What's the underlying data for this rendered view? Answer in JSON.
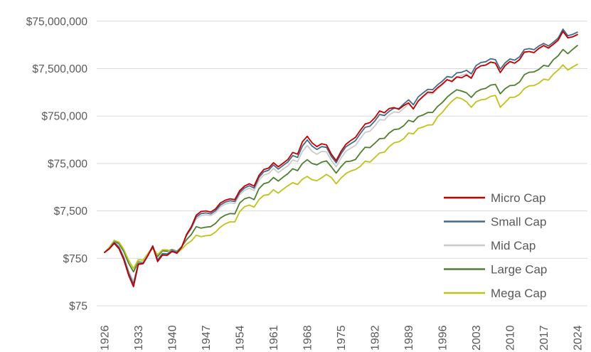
{
  "chart_data": {
    "type": "line",
    "title": "",
    "xlabel": "",
    "ylabel": "",
    "y_scale": "log",
    "ylim": [
      75,
      75000000
    ],
    "grid": "horizontal",
    "legend_position": "right-lower",
    "y_ticks": [
      {
        "value": 75000000,
        "label": "$75,000,000"
      },
      {
        "value": 7500000,
        "label": "$7,500,000"
      },
      {
        "value": 750000,
        "label": "$750,000"
      },
      {
        "value": 75000,
        "label": "$75,000"
      },
      {
        "value": 7500,
        "label": "$7,500"
      },
      {
        "value": 750,
        "label": "$750"
      },
      {
        "value": 75,
        "label": "$75"
      }
    ],
    "x_ticks": [
      1926,
      1933,
      1940,
      1947,
      1954,
      1961,
      1968,
      1975,
      1982,
      1989,
      1996,
      2003,
      2010,
      2017,
      2024
    ],
    "years": [
      1926,
      1927,
      1928,
      1929,
      1930,
      1931,
      1932,
      1933,
      1934,
      1935,
      1936,
      1937,
      1938,
      1939,
      1940,
      1941,
      1942,
      1943,
      1944,
      1945,
      1946,
      1947,
      1948,
      1949,
      1950,
      1951,
      1952,
      1953,
      1954,
      1955,
      1956,
      1957,
      1958,
      1959,
      1960,
      1961,
      1962,
      1963,
      1964,
      1965,
      1966,
      1967,
      1968,
      1969,
      1970,
      1971,
      1972,
      1973,
      1974,
      1975,
      1976,
      1977,
      1978,
      1979,
      1980,
      1981,
      1982,
      1983,
      1984,
      1985,
      1986,
      1987,
      1988,
      1989,
      1990,
      1991,
      1992,
      1993,
      1994,
      1995,
      1996,
      1997,
      1998,
      1999,
      2000,
      2001,
      2002,
      2003,
      2004,
      2005,
      2006,
      2007,
      2008,
      2009,
      2010,
      2011,
      2012,
      2013,
      2014,
      2015,
      2016,
      2017,
      2018,
      2019,
      2020,
      2021,
      2022,
      2023,
      2024
    ],
    "series": [
      {
        "name": "Micro Cap",
        "color": "#c00000",
        "values": [
          1000,
          1190,
          1560,
          1190,
          700,
          330,
          190,
          560,
          580,
          860,
          1350,
          640,
          880,
          870,
          1050,
          960,
          1300,
          2400,
          3500,
          6100,
          7300,
          7500,
          7100,
          8300,
          11000,
          12600,
          13500,
          13000,
          20000,
          25000,
          28000,
          25000,
          42000,
          56000,
          60000,
          78000,
          64000,
          76000,
          91000,
          128000,
          118000,
          215000,
          280000,
          205000,
          170000,
          195000,
          185000,
          118000,
          86000,
          135000,
          190000,
          228000,
          265000,
          375000,
          510000,
          545000,
          690000,
          960000,
          880000,
          1080000,
          1130000,
          1040000,
          1250000,
          1420000,
          1060000,
          1550000,
          1950000,
          2400000,
          2350000,
          2950000,
          3550000,
          4400000,
          4000000,
          5000000,
          4800000,
          5500000,
          4700000,
          7400000,
          8600000,
          8900000,
          10300000,
          9800000,
          6200000,
          8700000,
          10600000,
          9800000,
          11600000,
          16700000,
          17200000,
          16300000,
          20000000,
          23000000,
          20400000,
          24500000,
          30000000,
          46000000,
          33500000,
          35000000,
          39000000
        ]
      },
      {
        "name": "Small Cap",
        "color": "#44698c",
        "values": [
          1000,
          1210,
          1640,
          1280,
          770,
          370,
          215,
          580,
          600,
          880,
          1380,
          690,
          940,
          930,
          1100,
          1010,
          1330,
          2300,
          3300,
          5600,
          6600,
          6800,
          6500,
          7600,
          10000,
          11500,
          12300,
          11900,
          18200,
          22800,
          25500,
          22800,
          38000,
          50000,
          54000,
          70000,
          57000,
          68000,
          81000,
          110000,
          101000,
          175000,
          235000,
          175000,
          148000,
          170000,
          164000,
          106000,
          78000,
          120000,
          168000,
          196000,
          226000,
          320000,
          435000,
          460000,
          590000,
          810000,
          770000,
          950000,
          1100000,
          1080000,
          1350000,
          1650000,
          1300000,
          1900000,
          2300000,
          2750000,
          2700000,
          3400000,
          4100000,
          5100000,
          4900000,
          6100000,
          6300000,
          6900000,
          5800000,
          8700000,
          10100000,
          10500000,
          12100000,
          11600000,
          7300000,
          9900000,
          12000000,
          11300000,
          13300000,
          19000000,
          19800000,
          18800000,
          22500000,
          25500000,
          22500000,
          27000000,
          33000000,
          51000000,
          37000000,
          39500000,
          44000000
        ]
      },
      {
        "name": "Mid Cap",
        "color": "#cbcbcb",
        "values": [
          1000,
          1200,
          1670,
          1330,
          810,
          410,
          245,
          600,
          615,
          890,
          1360,
          710,
          960,
          950,
          1120,
          1030,
          1340,
          2250,
          3150,
          5100,
          6000,
          6200,
          5950,
          6900,
          9100,
          10400,
          11100,
          10800,
          16400,
          20400,
          22700,
          20200,
          33000,
          43000,
          46000,
          59000,
          48000,
          57000,
          67000,
          89000,
          82000,
          135000,
          180000,
          136000,
          117000,
          135000,
          132000,
          87000,
          64000,
          97000,
          136000,
          157000,
          180000,
          252000,
          340000,
          360000,
          465000,
          630000,
          615000,
          800000,
          920000,
          890000,
          1090000,
          1330000,
          1080000,
          1560000,
          1870000,
          2240000,
          2210000,
          2800000,
          3400000,
          4250000,
          4200000,
          5100000,
          5400000,
          5800000,
          4850000,
          7300000,
          8500000,
          8800000,
          10200000,
          9900000,
          6200000,
          8500000,
          10300000,
          9800000,
          11500000,
          16400000,
          17300000,
          16500000,
          19500000,
          22300000,
          19800000,
          23800000,
          28500000,
          45000000,
          33000000,
          35500000,
          40000000
        ]
      },
      {
        "name": "Large Cap",
        "color": "#4f7e32",
        "values": [
          1000,
          1280,
          1740,
          1520,
          1040,
          590,
          390,
          630,
          625,
          900,
          1250,
          820,
          1080,
          1060,
          1150,
          1060,
          1330,
          1850,
          2400,
          3500,
          3250,
          3400,
          3500,
          4100,
          5300,
          6100,
          6600,
          6500,
          11000,
          13500,
          14500,
          13000,
          22000,
          28000,
          30000,
          38000,
          32000,
          38500,
          46000,
          58000,
          53000,
          75000,
          90000,
          75000,
          70000,
          80000,
          85000,
          64000,
          47000,
          64000,
          82000,
          84000,
          91000,
          125000,
          165000,
          162000,
          200000,
          250000,
          255000,
          330000,
          390000,
          400000,
          470000,
          610000,
          565000,
          730000,
          790000,
          890000,
          895000,
          1190000,
          1450000,
          1880000,
          2280000,
          2680000,
          2530000,
          2320000,
          1850000,
          2420000,
          2730000,
          2880000,
          3350000,
          3500000,
          2210000,
          2830000,
          3290000,
          3340000,
          3910000,
          5600000,
          6300000,
          6400000,
          7200000,
          8800000,
          8400000,
          11500000,
          14000000,
          19000000,
          15500000,
          19000000,
          23000000
        ]
      },
      {
        "name": "Mega Cap",
        "color": "#c2c118",
        "values": [
          1000,
          1290,
          1800,
          1640,
          1150,
          680,
          460,
          700,
          690,
          960,
          1270,
          890,
          1140,
          1130,
          1050,
          970,
          1180,
          1500,
          1750,
          2300,
          2150,
          2250,
          2300,
          2700,
          3400,
          4000,
          4400,
          4400,
          7200,
          9200,
          10000,
          9000,
          13000,
          16000,
          16500,
          21000,
          17800,
          21500,
          25500,
          29500,
          27000,
          35000,
          40000,
          34000,
          32500,
          37500,
          44000,
          38000,
          28000,
          37000,
          46000,
          52000,
          56000,
          65000,
          84000,
          80000,
          100000,
          125000,
          130000,
          170000,
          205000,
          215000,
          250000,
          330000,
          315000,
          410000,
          440000,
          485000,
          490000,
          720000,
          900000,
          1200000,
          1550000,
          1850000,
          1750000,
          1500000,
          1150000,
          1500000,
          1650000,
          1700000,
          1950000,
          2050000,
          1150000,
          1450000,
          1850000,
          1880000,
          2150000,
          2850000,
          3250000,
          3300000,
          3700000,
          4500000,
          4300000,
          5700000,
          7000000,
          9000000,
          7000000,
          8100000,
          9300000
        ]
      }
    ],
    "colors": {
      "axis_text": "#595959",
      "gridline": "#d9d9d9",
      "background": "#ffffff"
    }
  }
}
